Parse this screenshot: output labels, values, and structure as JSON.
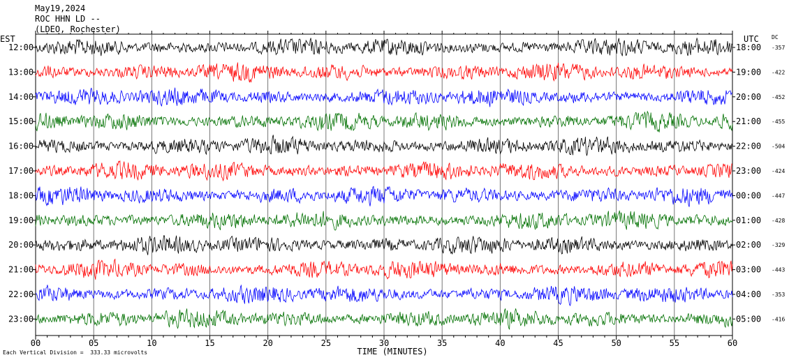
{
  "header": {
    "date": "May19,2024",
    "station": "ROC HHN LD --",
    "source": "(LDEO, Rochester)"
  },
  "left_zone_label": "EST",
  "right_zone_label": "UTC",
  "dc_label": "DC",
  "footer": {
    "scale_text": "Each Vertical Division =  333.33 microvolts"
  },
  "chart_data": {
    "type": "line",
    "xlabel": "TIME (MINUTES)",
    "xlim": [
      0,
      60
    ],
    "x_ticks": [
      "00",
      "05",
      "10",
      "15",
      "20",
      "25",
      "30",
      "35",
      "40",
      "45",
      "50",
      "55",
      "60"
    ],
    "trace_colors": [
      "#000000",
      "#ff0000",
      "#0000ff",
      "#007000"
    ],
    "rows": [
      {
        "est": "12:00",
        "utc": "18:00",
        "dc": "-357"
      },
      {
        "est": "13:00",
        "utc": "19:00",
        "dc": "-422"
      },
      {
        "est": "14:00",
        "utc": "20:00",
        "dc": "-452"
      },
      {
        "est": "15:00",
        "utc": "21:00",
        "dc": "-455"
      },
      {
        "est": "16:00",
        "utc": "22:00",
        "dc": "-504"
      },
      {
        "est": "17:00",
        "utc": "23:00",
        "dc": "-424"
      },
      {
        "est": "18:00",
        "utc": "00:00",
        "dc": "-447"
      },
      {
        "est": "19:00",
        "utc": "01:00",
        "dc": "-428"
      },
      {
        "est": "20:00",
        "utc": "02:00",
        "dc": "-329"
      },
      {
        "est": "21:00",
        "utc": "03:00",
        "dc": "-443"
      },
      {
        "est": "22:00",
        "utc": "04:00",
        "dc": "-353"
      },
      {
        "est": "23:00",
        "utc": "05:00",
        "dc": "-416"
      }
    ]
  }
}
